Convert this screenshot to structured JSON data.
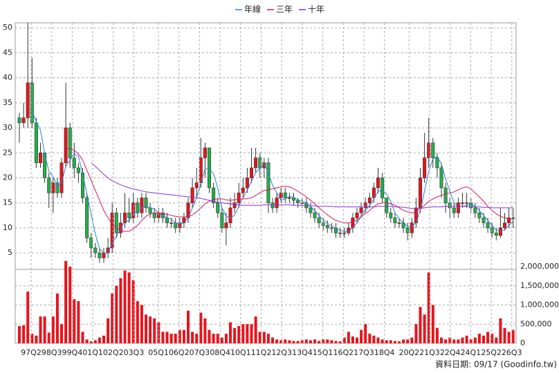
{
  "chart_data": [
    {
      "type": "candlestick",
      "open": [
        32,
        31,
        32,
        39,
        31,
        23,
        25,
        20,
        17,
        19,
        17,
        23,
        30,
        24,
        22,
        21,
        16,
        8,
        6,
        5,
        4,
        5,
        6,
        13,
        9,
        11,
        13,
        12,
        15,
        13,
        16,
        14,
        13,
        12,
        13,
        12,
        11,
        11,
        10,
        11,
        12,
        15,
        18,
        19,
        24,
        26,
        18,
        15,
        13,
        10,
        11,
        14,
        15,
        17,
        18,
        20,
        22,
        24,
        22,
        23,
        15,
        14,
        16,
        17,
        16,
        16,
        15.5,
        15,
        15,
        14,
        13,
        12,
        11,
        10.5,
        10,
        10,
        9,
        9,
        9,
        10,
        12,
        13,
        14,
        15,
        16,
        18,
        20,
        16,
        13,
        12,
        11,
        11,
        10,
        9,
        11,
        14,
        20,
        24,
        27,
        24,
        22,
        18,
        15,
        14,
        13,
        15,
        15,
        15,
        14,
        13,
        12,
        11,
        10,
        9,
        8.5,
        10,
        11,
        12
      ],
      "high": [
        33,
        35,
        51,
        44,
        32,
        27,
        25,
        21,
        20,
        20,
        24,
        39,
        31,
        27,
        23,
        22,
        17,
        9,
        7,
        6,
        6,
        8,
        15,
        14,
        13,
        17,
        16,
        17,
        16,
        17,
        17,
        15,
        14,
        14,
        14,
        13,
        12,
        12,
        12,
        13,
        16,
        20,
        22,
        28,
        27,
        26,
        19,
        16,
        14,
        13,
        16,
        17,
        19,
        20,
        22,
        26,
        26,
        25,
        24,
        24,
        16,
        17,
        18,
        18,
        17,
        17,
        16,
        16,
        16,
        15,
        14,
        13,
        12,
        11.5,
        11,
        11,
        10,
        10,
        11,
        13,
        14,
        15,
        16,
        17,
        19,
        22,
        21,
        16,
        14,
        13,
        12,
        12,
        11,
        12,
        16,
        22,
        29,
        32,
        28,
        25,
        23,
        19,
        16,
        15,
        16,
        17,
        17,
        16,
        15,
        14,
        13,
        12,
        11,
        10,
        14,
        13,
        14,
        14
      ],
      "low": [
        27,
        30,
        30,
        30,
        22,
        22,
        19,
        14,
        13,
        16,
        16,
        22,
        22,
        20,
        19,
        15,
        7,
        4,
        4,
        3,
        3,
        4,
        5,
        8,
        8,
        10,
        11,
        11,
        12,
        12,
        13,
        12,
        11,
        11,
        11,
        10,
        10,
        9,
        9,
        10,
        11,
        14,
        16,
        18,
        20,
        17,
        14,
        12,
        9,
        6.5,
        10,
        13,
        14,
        16,
        17,
        19,
        21,
        20,
        20,
        13,
        13,
        13,
        15,
        15,
        15,
        14.5,
        14,
        14,
        13,
        12,
        11,
        10,
        9.5,
        9,
        9,
        8,
        8,
        8,
        8.5,
        9,
        11,
        12,
        13,
        14,
        15,
        17,
        15,
        12,
        11,
        10,
        10,
        9,
        7.5,
        8,
        10,
        13,
        19,
        22,
        22,
        20,
        16,
        13,
        12,
        12,
        12,
        14,
        14,
        13,
        12,
        11,
        10,
        9,
        8,
        7.5,
        8,
        9.5,
        10,
        10
      ],
      "close": [
        31,
        32,
        39,
        31,
        23,
        25,
        20,
        17,
        19,
        17,
        23,
        30,
        24,
        22,
        21,
        16,
        8,
        6,
        5,
        4,
        5,
        6,
        13,
        9,
        11,
        13,
        12,
        15,
        13,
        16,
        14,
        13,
        12,
        13,
        12,
        11,
        11,
        10,
        11,
        12,
        15,
        18,
        19,
        24,
        26,
        18,
        15,
        13,
        10,
        11,
        14,
        15,
        17,
        18,
        20,
        22,
        24,
        22,
        23,
        15,
        14,
        16,
        17,
        16,
        16,
        15.5,
        15,
        15,
        14,
        13,
        12,
        11,
        10.5,
        10,
        10,
        9,
        9,
        9,
        10,
        12,
        13,
        14,
        15,
        16,
        18,
        20,
        16,
        13,
        12,
        11,
        11,
        10,
        9,
        11,
        14,
        20,
        24,
        27,
        24,
        22,
        18,
        15,
        14,
        13,
        15,
        15,
        15,
        14,
        13,
        12,
        11,
        10,
        9,
        8.5,
        10,
        11,
        12,
        12
      ],
      "up_color": "#e8141c",
      "down_color": "#22b04a",
      "series": [
        {
          "name": "年線",
          "color": "#2a7fd4",
          "values": [
            null,
            null,
            null,
            33.3,
            31.3,
            29.5,
            24.8,
            21.3,
            20.3,
            18.3,
            19,
            22.3,
            23.5,
            24.8,
            24.3,
            20.8,
            16.8,
            12.8,
            8.8,
            5.8,
            5,
            5,
            7,
            8.3,
            9.8,
            11.5,
            11.3,
            12.8,
            13.3,
            14,
            14.5,
            14,
            13.8,
            13,
            12.5,
            12,
            11.8,
            11,
            10.8,
            11,
            12,
            14,
            16,
            19,
            21.8,
            21.8,
            20.8,
            18,
            14,
            12.3,
            12,
            12.5,
            14.3,
            16,
            17.5,
            19.3,
            21,
            22,
            22.8,
            21,
            18.5,
            17,
            15.5,
            15.8,
            16.3,
            16.1,
            15.6,
            15.4,
            14.9,
            14.3,
            13.5,
            12.5,
            11.6,
            10.9,
            10.4,
            9.9,
            9.5,
            9.3,
            9.3,
            10,
            11,
            12.3,
            13.5,
            14.5,
            15.8,
            17.3,
            17.5,
            16.8,
            15.3,
            13,
            11.8,
            11,
            10.3,
            10.3,
            11,
            13.5,
            17.3,
            21.3,
            23.8,
            24.3,
            22.8,
            19.8,
            17.3,
            15,
            14.3,
            14.3,
            14.5,
            14.8,
            14.3,
            13.5,
            12.5,
            11.5,
            10.5,
            9.6,
            9.4,
            9.6,
            10.4,
            11.3
          ]
        },
        {
          "name": "三年",
          "color": "#d4145a",
          "values": [
            null,
            null,
            null,
            null,
            null,
            null,
            null,
            null,
            null,
            null,
            null,
            26,
            25.8,
            25.5,
            24.8,
            23.5,
            21.5,
            19.5,
            17.5,
            15.5,
            13.5,
            12,
            10.8,
            10,
            9.5,
            9.3,
            9.3,
            9.8,
            10.5,
            11.5,
            12.3,
            12.8,
            13,
            13,
            12.8,
            12.7,
            12.5,
            12.3,
            12.2,
            12.2,
            12.3,
            12.6,
            13.2,
            14,
            14.8,
            15.3,
            15.7,
            15.8,
            15.8,
            15.6,
            15.5,
            15.6,
            15.7,
            15.8,
            15.8,
            16,
            16.5,
            17,
            17.5,
            17.6,
            17.8,
            18,
            18.2,
            18.3,
            18.2,
            17.8,
            17.3,
            16.8,
            16.2,
            15.5,
            14.8,
            14,
            13.3,
            12.6,
            12,
            11.5,
            11.2,
            11,
            11,
            11.2,
            11.6,
            12.2,
            12.8,
            13.5,
            14.2,
            14.8,
            15,
            15,
            14.8,
            14.5,
            14,
            13.5,
            13.2,
            13,
            13.2,
            13.8,
            14.5,
            15.3,
            15.8,
            16.2,
            16.5,
            16.8,
            17,
            17.2,
            17.6,
            18,
            18.2,
            17.8,
            17,
            16.2,
            15.3,
            14.3,
            13.5,
            12.8,
            12.3,
            12,
            11.8,
            11.8
          ]
        },
        {
          "name": "十年",
          "color": "#8a2be2",
          "values": [
            null,
            null,
            null,
            null,
            null,
            null,
            null,
            null,
            null,
            null,
            null,
            null,
            null,
            null,
            null,
            null,
            null,
            23,
            22.3,
            21.5,
            20.7,
            20,
            19.4,
            19,
            18.6,
            18.3,
            18,
            17.8,
            17.6,
            17.4,
            17.2,
            17.1,
            17,
            16.9,
            16.8,
            16.7,
            16.6,
            16.5,
            16.4,
            16.3,
            16.2,
            16.1,
            16,
            15.9,
            15.7,
            15.5,
            15.3,
            15.1,
            15,
            14.9,
            14.8,
            14.7,
            14.6,
            14.5,
            14.5,
            14.5,
            14.5,
            14.5,
            14.6,
            14.6,
            14.6,
            14.6,
            14.6,
            14.6,
            14.6,
            14.5,
            14.5,
            14.5,
            14.4,
            14.4,
            14.4,
            14.3,
            14.3,
            14.3,
            14.3,
            14.2,
            14.2,
            14.2,
            14.2,
            14.2,
            14.2,
            14.2,
            14.2,
            14.2,
            14.2,
            14.3,
            14.3,
            14.3,
            14.3,
            14.2,
            14.2,
            14.1,
            14,
            13.9,
            13.9,
            13.9,
            14,
            14.1,
            14.2,
            14.2,
            14.2,
            14.3,
            14.3,
            14.3,
            14.3,
            14.3,
            14.3,
            14.3,
            14.2,
            14.2,
            14.1,
            14.1,
            14,
            14,
            14,
            14,
            14,
            14
          ]
        }
      ],
      "ylim": [
        1.7,
        51
      ],
      "yticks": [
        5,
        10,
        15,
        20,
        25,
        30,
        35,
        40,
        45,
        50
      ],
      "grid": true,
      "legend": "top"
    },
    {
      "type": "bar",
      "categories": [
        "97Q2",
        null,
        null,
        null,
        null,
        "98Q3",
        null,
        null,
        null,
        null,
        "99Q4",
        null,
        null,
        null,
        null,
        "01Q1",
        null,
        null,
        null,
        null,
        "02Q2",
        null,
        null,
        null,
        null,
        "03Q3",
        null,
        null,
        null,
        null,
        null,
        "05Q1",
        null,
        null,
        null,
        null,
        "06Q2",
        null,
        null,
        null,
        null,
        "07Q3",
        null,
        null,
        null,
        null,
        "08Q4",
        null,
        null,
        null,
        null,
        "10Q1",
        null,
        null,
        null,
        null,
        "11Q2",
        null,
        null,
        null,
        null,
        "12Q3",
        null,
        null,
        null,
        null,
        "13Q4",
        null,
        null,
        null,
        null,
        "15Q1",
        null,
        null,
        null,
        null,
        "16Q2",
        null,
        null,
        null,
        null,
        "17Q3",
        null,
        null,
        null,
        null,
        "18Q4",
        null,
        null,
        null,
        null,
        null,
        "20Q2",
        null,
        null,
        null,
        null,
        "21Q3",
        null,
        null,
        null,
        null,
        "22Q4",
        null,
        null,
        null,
        null,
        "24Q1",
        null,
        null,
        null,
        null,
        "25Q2",
        null,
        null,
        null,
        null,
        "26Q3"
      ],
      "values": [
        450000,
        470000,
        1350000,
        250000,
        200000,
        700000,
        700000,
        280000,
        700000,
        1300000,
        500000,
        2150000,
        2000000,
        1150000,
        1100000,
        300000,
        100000,
        50000,
        80000,
        150000,
        200000,
        650000,
        1300000,
        1500000,
        1700000,
        1900000,
        1850000,
        1650000,
        1100000,
        1000000,
        750000,
        700000,
        650000,
        550000,
        300000,
        300000,
        250000,
        250000,
        350000,
        350000,
        850000,
        300000,
        250000,
        800000,
        650000,
        350000,
        250000,
        250000,
        150000,
        250000,
        550000,
        400000,
        450000,
        500000,
        500000,
        500000,
        700000,
        300000,
        300000,
        250000,
        150000,
        100000,
        80000,
        100000,
        80000,
        60000,
        60000,
        80000,
        100000,
        80000,
        100000,
        60000,
        100000,
        100000,
        80000,
        60000,
        50000,
        150000,
        300000,
        180000,
        150000,
        350000,
        500000,
        250000,
        200000,
        150000,
        100000,
        80000,
        80000,
        60000,
        50000,
        100000,
        100000,
        150000,
        500000,
        950000,
        750000,
        1850000,
        1000000,
        400000,
        150000,
        100000,
        150000,
        100000,
        100000,
        150000,
        200000,
        100000,
        150000,
        250000,
        200000,
        300000,
        250000,
        150000,
        650000,
        400000,
        300000,
        350000
      ],
      "color": "#e8141c",
      "ylim": [
        0,
        2200000
      ],
      "yticks": [
        0,
        {
          "value": 500000,
          "label": "500,000"
        },
        {
          "value": 1000000,
          "label": "1,000,000"
        },
        {
          "value": 1500000,
          "label": "1,500,000"
        },
        {
          "value": 2000000,
          "label": "2,000,000"
        }
      ],
      "grid": true
    }
  ],
  "footer": "資料日期: 09/17 (Goodinfo.tw)"
}
